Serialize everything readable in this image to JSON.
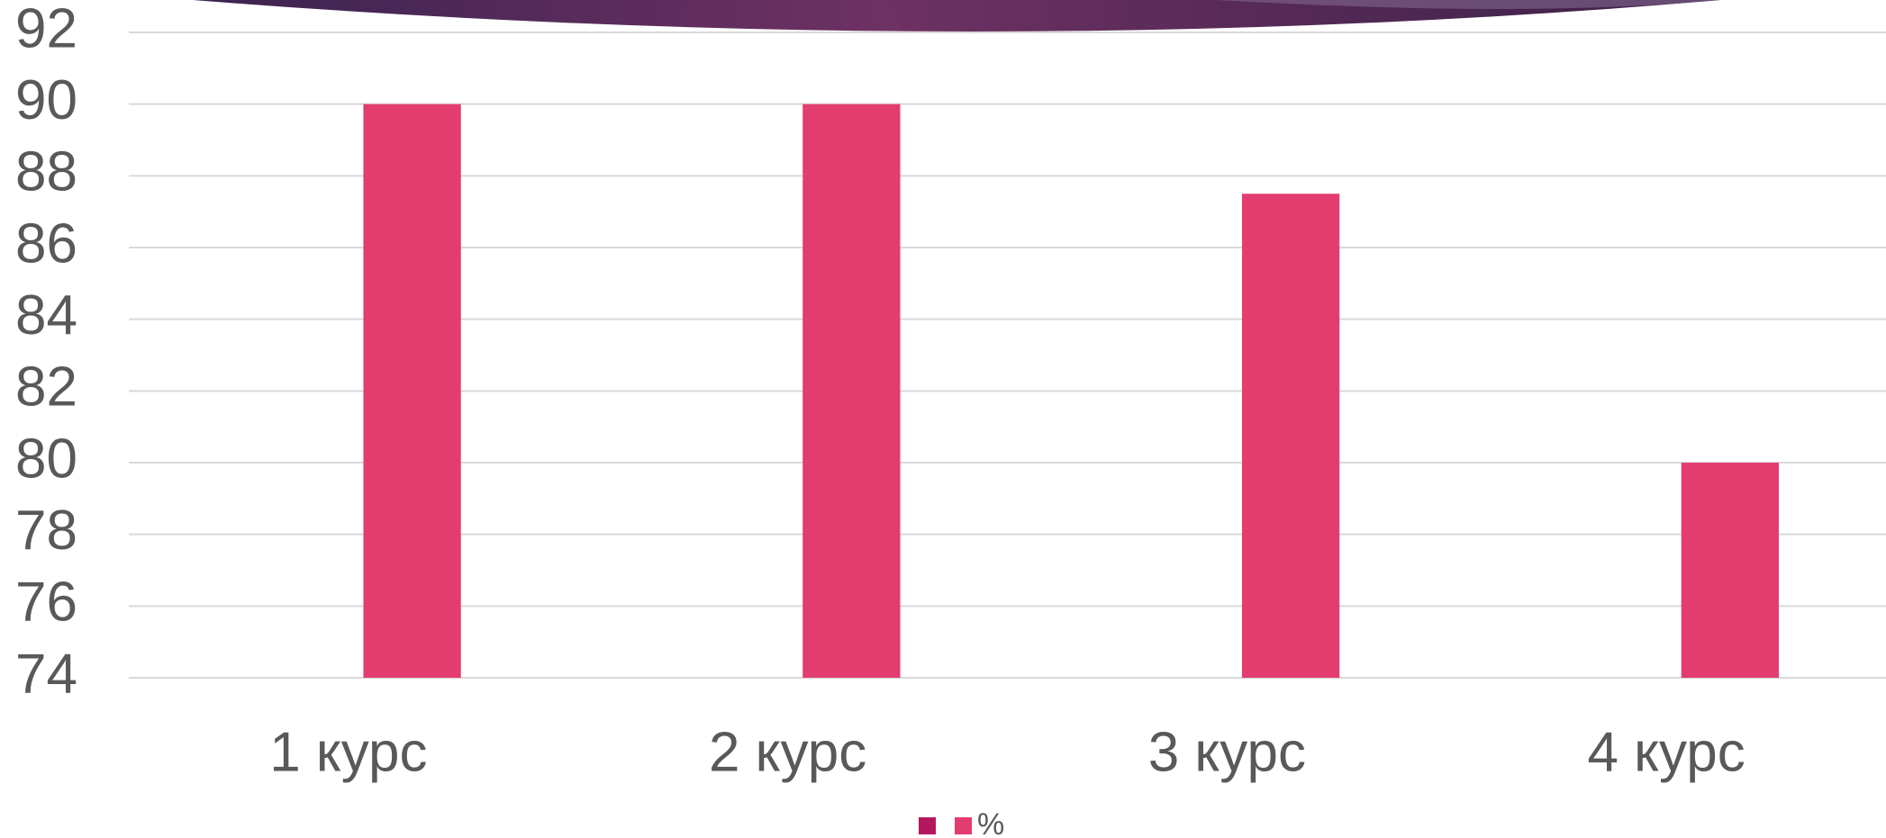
{
  "chart_data": {
    "type": "bar",
    "categories": [
      "1 курс",
      "2 курс",
      "3 курс",
      "4 курс"
    ],
    "series": [
      {
        "name": null,
        "color": "#b5175e",
        "values": [
          null,
          null,
          null,
          null
        ]
      },
      {
        "name": "%",
        "color": "#e33d6f",
        "values": [
          90,
          90,
          87.5,
          80
        ]
      }
    ],
    "ylim": [
      74,
      92
    ],
    "yticks": [
      74,
      76,
      78,
      80,
      82,
      84,
      86,
      88,
      90,
      92
    ],
    "grid": true,
    "legend": "bottom"
  }
}
